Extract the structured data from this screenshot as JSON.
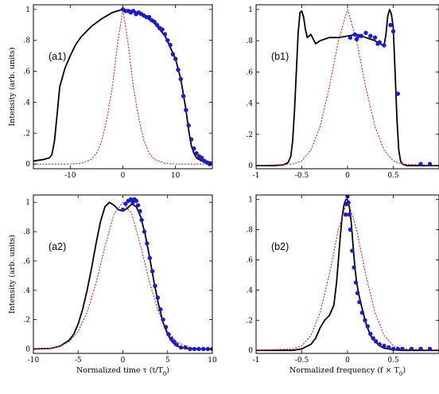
{
  "chart_data": [
    {
      "id": "a1",
      "type": "line",
      "panel_label": "(a1)",
      "ylabel": "Intensity (arb. units)",
      "xlabel": "",
      "xlim": [
        -17,
        17
      ],
      "ylim": [
        -0.03,
        1.03
      ],
      "xticks": [
        {
          "v": -10,
          "t": "-10"
        },
        {
          "v": 0,
          "t": "0"
        },
        {
          "v": 10,
          "t": "10"
        }
      ],
      "yticks": [
        {
          "v": 0,
          "t": "0"
        },
        {
          "v": 0.2,
          "t": ".2"
        },
        {
          "v": 0.4,
          "t": ".4"
        },
        {
          "v": 0.6,
          "t": ".6"
        },
        {
          "v": 0.8,
          "t": ".8"
        },
        {
          "v": 1,
          "t": "1"
        }
      ],
      "series": [
        {
          "style": "solid",
          "color": "#000000",
          "x": [
            -17,
            -15,
            -14,
            -13.5,
            -13,
            -12.5,
            -12,
            -11,
            -10,
            -9,
            -8,
            -6,
            -4,
            -2,
            0,
            2,
            4,
            6,
            8,
            10,
            11,
            12,
            12.5,
            13,
            13.5,
            14,
            15,
            17
          ],
          "y": [
            0.02,
            0.03,
            0.04,
            0.06,
            0.15,
            0.32,
            0.5,
            0.62,
            0.7,
            0.77,
            0.82,
            0.89,
            0.94,
            0.98,
            1.0,
            0.99,
            0.96,
            0.91,
            0.83,
            0.68,
            0.55,
            0.35,
            0.22,
            0.12,
            0.07,
            0.04,
            0.02,
            0.01
          ]
        },
        {
          "style": "dashed",
          "color": "#e0282a",
          "x": [
            -17,
            -10,
            -8,
            -6,
            -5,
            -4,
            -3,
            -2,
            -1,
            0,
            1,
            2,
            3,
            4,
            5,
            6,
            8,
            10,
            17
          ],
          "y": [
            0,
            0,
            0.005,
            0.03,
            0.07,
            0.15,
            0.3,
            0.5,
            0.78,
            1.0,
            0.78,
            0.5,
            0.3,
            0.15,
            0.07,
            0.03,
            0.005,
            0,
            0
          ]
        },
        {
          "style": "markers",
          "color": "#1c1ccf",
          "x": [
            0,
            0.5,
            1,
            1.5,
            2,
            2.5,
            3,
            3.5,
            4,
            4.5,
            5,
            5.5,
            6,
            6.5,
            7,
            7.5,
            8,
            8.5,
            9,
            9.5,
            10,
            10.5,
            11,
            11.5,
            12,
            12.5,
            13,
            13.5,
            14,
            14.5,
            15,
            15.5,
            16,
            16.5
          ],
          "y": [
            1.0,
            0.99,
            0.99,
            0.98,
            0.99,
            0.97,
            0.98,
            0.97,
            0.96,
            0.95,
            0.95,
            0.93,
            0.92,
            0.9,
            0.88,
            0.87,
            0.84,
            0.8,
            0.77,
            0.71,
            0.68,
            0.61,
            0.55,
            0.44,
            0.35,
            0.25,
            0.16,
            0.1,
            0.07,
            0.05,
            0.04,
            0.02,
            0.01,
            0.0
          ]
        }
      ]
    },
    {
      "id": "b1",
      "type": "line",
      "panel_label": "(b1)",
      "ylabel": "",
      "xlabel": "",
      "xlim": [
        -1,
        1
      ],
      "ylim": [
        -0.02,
        1.03
      ],
      "xticks": [
        {
          "v": -1,
          "t": "-1"
        },
        {
          "v": -0.5,
          "t": "-0.5"
        },
        {
          "v": 0,
          "t": "0"
        },
        {
          "v": 0.5,
          "t": "0.5"
        }
      ],
      "yticks": [
        {
          "v": 0,
          "t": "0"
        },
        {
          "v": 0.2,
          "t": ".2"
        },
        {
          "v": 0.4,
          "t": ".4"
        },
        {
          "v": 0.6,
          "t": ".6"
        },
        {
          "v": 0.8,
          "t": ".8"
        },
        {
          "v": 1,
          "t": "1"
        }
      ],
      "series": [
        {
          "style": "solid",
          "color": "#000000",
          "x": [
            -1,
            -0.8,
            -0.7,
            -0.65,
            -0.62,
            -0.6,
            -0.58,
            -0.56,
            -0.54,
            -0.52,
            -0.5,
            -0.48,
            -0.46,
            -0.44,
            -0.4,
            -0.35,
            -0.3,
            -0.2,
            -0.1,
            0,
            0.1,
            0.2,
            0.3,
            0.35,
            0.4,
            0.42,
            0.44,
            0.46,
            0.48,
            0.5,
            0.52,
            0.54,
            0.56,
            0.58,
            0.6,
            0.65,
            0.7,
            0.8,
            1
          ],
          "y": [
            0,
            0,
            0.005,
            0.02,
            0.06,
            0.16,
            0.35,
            0.6,
            0.85,
            0.98,
            0.99,
            0.95,
            0.87,
            0.82,
            0.84,
            0.78,
            0.8,
            0.82,
            0.82,
            0.83,
            0.84,
            0.82,
            0.8,
            0.78,
            0.77,
            0.84,
            0.96,
            1.0,
            0.97,
            0.88,
            0.6,
            0.3,
            0.1,
            0.03,
            0.01,
            0,
            0,
            0,
            0
          ]
        },
        {
          "style": "dashed",
          "color": "#e0282a",
          "x": [
            -1,
            -0.6,
            -0.5,
            -0.4,
            -0.3,
            -0.2,
            -0.1,
            0,
            0.1,
            0.2,
            0.3,
            0.4,
            0.5,
            0.6,
            1
          ],
          "y": [
            0,
            0.01,
            0.03,
            0.1,
            0.25,
            0.5,
            0.8,
            1.0,
            0.8,
            0.5,
            0.25,
            0.1,
            0.03,
            0.01,
            0
          ]
        },
        {
          "style": "markers",
          "color": "#1c1ccf",
          "x": [
            0.03,
            0.08,
            0.1,
            0.12,
            0.15,
            0.2,
            0.25,
            0.3,
            0.33,
            0.35,
            0.4,
            0.47,
            0.5,
            0.55,
            0.8,
            0.9
          ],
          "y": [
            0.82,
            0.84,
            0.81,
            0.83,
            0.83,
            0.85,
            0.83,
            0.82,
            0.78,
            0.79,
            0.77,
            0.9,
            0.86,
            0.46,
            0.01,
            0.01
          ]
        }
      ]
    },
    {
      "id": "a2",
      "type": "line",
      "panel_label": "(a2)",
      "ylabel": "Intensity (arb. units)",
      "xlabel": "Normalized time  τ (t/T_0)",
      "xlim": [
        -10,
        10
      ],
      "ylim": [
        -0.03,
        1.05
      ],
      "xticks": [
        {
          "v": -10,
          "t": "-10"
        },
        {
          "v": -5,
          "t": "-5"
        },
        {
          "v": 0,
          "t": "0"
        },
        {
          "v": 5,
          "t": "5"
        },
        {
          "v": 10,
          "t": "10"
        }
      ],
      "yticks": [
        {
          "v": 0,
          "t": "0"
        },
        {
          "v": 0.2,
          "t": ".2"
        },
        {
          "v": 0.4,
          "t": ".4"
        },
        {
          "v": 0.6,
          "t": ".6"
        },
        {
          "v": 0.8,
          "t": ".8"
        },
        {
          "v": 1,
          "t": "1"
        }
      ],
      "series": [
        {
          "style": "solid",
          "color": "#000000",
          "x": [
            -10,
            -8,
            -7,
            -6,
            -5.5,
            -5,
            -4.5,
            -4,
            -3.5,
            -3,
            -2.5,
            -2,
            -1.5,
            -1,
            -0.5,
            0,
            0.5,
            1,
            1.5,
            2,
            2.5,
            3,
            3.5,
            4,
            4.5,
            5,
            5.5,
            6,
            7,
            8,
            10
          ],
          "y": [
            0,
            0.005,
            0.02,
            0.06,
            0.1,
            0.17,
            0.27,
            0.4,
            0.55,
            0.72,
            0.87,
            0.97,
            1.0,
            0.98,
            0.95,
            0.94,
            0.96,
            0.99,
            0.97,
            0.9,
            0.78,
            0.62,
            0.45,
            0.3,
            0.18,
            0.1,
            0.05,
            0.02,
            0.005,
            0,
            0
          ]
        },
        {
          "style": "dashed",
          "color": "#e0282a",
          "x": [
            -10,
            -8,
            -7,
            -6,
            -5,
            -4,
            -3,
            -2,
            -1,
            0,
            1,
            2,
            3,
            4,
            5,
            6,
            7,
            8,
            10
          ],
          "y": [
            0,
            0.005,
            0.02,
            0.05,
            0.12,
            0.25,
            0.45,
            0.7,
            0.92,
            1.0,
            0.92,
            0.7,
            0.45,
            0.25,
            0.12,
            0.05,
            0.02,
            0.005,
            0
          ]
        },
        {
          "style": "markers",
          "color": "#1c1ccf",
          "x": [
            0,
            0.3,
            0.6,
            0.9,
            1.1,
            1.3,
            1.5,
            1.7,
            1.9,
            2.1,
            2.4,
            2.7,
            3.0,
            3.3,
            3.6,
            3.9,
            4.2,
            4.5,
            4.8,
            5.1,
            5.4,
            5.7,
            6,
            6.5,
            7,
            7.5,
            8,
            8.5,
            9,
            9.5,
            10
          ],
          "y": [
            0.95,
            0.99,
            1.01,
            1.02,
            1.0,
            1.02,
            1.01,
            0.98,
            0.94,
            0.88,
            0.8,
            0.72,
            0.62,
            0.53,
            0.43,
            0.35,
            0.27,
            0.2,
            0.15,
            0.1,
            0.07,
            0.05,
            0.03,
            0.01,
            0.01,
            0,
            0,
            0,
            0,
            0,
            0
          ]
        }
      ]
    },
    {
      "id": "b2",
      "type": "line",
      "panel_label": "(b2)",
      "ylabel": "",
      "xlabel": "Normalized frequency  (f × T_0)",
      "xlim": [
        -1,
        1
      ],
      "ylim": [
        -0.02,
        1.03
      ],
      "xticks": [
        {
          "v": -1,
          "t": "-1"
        },
        {
          "v": -0.5,
          "t": "-0.5"
        },
        {
          "v": 0,
          "t": "0"
        },
        {
          "v": 0.5,
          "t": "0.5"
        }
      ],
      "yticks": [
        {
          "v": 0,
          "t": "0"
        },
        {
          "v": 0.2,
          "t": ".2"
        },
        {
          "v": 0.4,
          "t": ".4"
        },
        {
          "v": 0.6,
          "t": ".6"
        },
        {
          "v": 0.8,
          "t": ".8"
        },
        {
          "v": 1,
          "t": "1"
        }
      ],
      "series": [
        {
          "style": "solid",
          "color": "#000000",
          "x": [
            -1,
            -0.6,
            -0.5,
            -0.4,
            -0.35,
            -0.3,
            -0.25,
            -0.2,
            -0.15,
            -0.12,
            -0.1,
            -0.08,
            -0.06,
            -0.04,
            -0.02,
            0,
            0.02,
            0.04,
            0.06,
            0.08,
            0.1,
            0.12,
            0.15,
            0.2,
            0.25,
            0.3,
            0.35,
            0.4,
            0.5,
            0.6,
            1
          ],
          "y": [
            0,
            0,
            0.01,
            0.04,
            0.08,
            0.15,
            0.2,
            0.23,
            0.3,
            0.45,
            0.6,
            0.75,
            0.88,
            0.96,
            1.0,
            1.0,
            0.95,
            0.85,
            0.7,
            0.55,
            0.45,
            0.38,
            0.3,
            0.18,
            0.1,
            0.06,
            0.03,
            0.015,
            0.005,
            0,
            0
          ]
        },
        {
          "style": "dashed",
          "color": "#e0282a",
          "x": [
            -1,
            -0.6,
            -0.5,
            -0.4,
            -0.3,
            -0.2,
            -0.1,
            0,
            0.1,
            0.2,
            0.3,
            0.4,
            0.5,
            0.6,
            1
          ],
          "y": [
            0,
            0.01,
            0.03,
            0.1,
            0.25,
            0.5,
            0.8,
            1.0,
            0.8,
            0.5,
            0.25,
            0.1,
            0.03,
            0.01,
            0
          ]
        },
        {
          "style": "markers",
          "color": "#1c1ccf",
          "x": [
            -0.02,
            -0.01,
            0,
            0.01,
            0.02,
            0.03,
            0.05,
            0.07,
            0.09,
            0.11,
            0.13,
            0.16,
            0.19,
            0.22,
            0.25,
            0.28,
            0.31,
            0.35,
            0.4,
            0.45,
            0.5,
            0.55,
            0.6,
            0.7,
            0.8,
            0.9
          ],
          "y": [
            0.9,
            0.97,
            1.02,
            0.98,
            0.9,
            0.8,
            0.66,
            0.55,
            0.45,
            0.38,
            0.32,
            0.25,
            0.2,
            0.16,
            0.11,
            0.08,
            0.06,
            0.04,
            0.03,
            0.02,
            0.01,
            0.01,
            0.01,
            0.01,
            0.01,
            0.01
          ]
        }
      ]
    }
  ]
}
